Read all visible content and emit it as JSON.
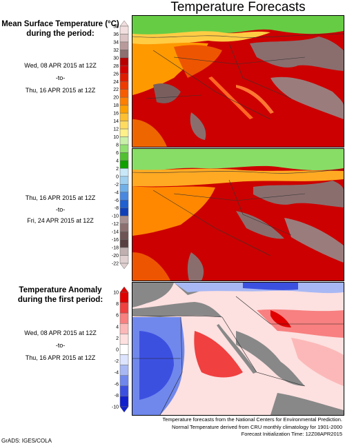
{
  "title": "Temperature Forecasts",
  "panel1": {
    "heading_line1": "Mean Surface Temperature (°C)",
    "heading_line2": "during the period:",
    "start": "Wed, 08 APR 2015 at 12Z",
    "sep": "-to-",
    "end": "Thu, 16 APR 2015 at 12Z"
  },
  "panel2": {
    "start": "Thu, 16 APR 2015 at 12Z",
    "sep": "-to-",
    "end": "Fri, 24 APR 2015 at 12Z"
  },
  "panel3": {
    "heading_line1": "Temperature Anomaly",
    "heading_line2": "during the first period:",
    "start": "Wed, 08 APR 2015 at 12Z",
    "sep": "-to-",
    "end": "Thu, 16 APR 2015 at 12Z"
  },
  "temp_scale": {
    "ticks": [
      "38",
      "36",
      "34",
      "32",
      "30",
      "28",
      "26",
      "24",
      "22",
      "20",
      "18",
      "16",
      "14",
      "12",
      "10",
      "8",
      "6",
      "4",
      "2",
      "0",
      "-2",
      "-4",
      "-6",
      "-8",
      "-10",
      "-12",
      "-14",
      "-16",
      "-18",
      "-20",
      "-22"
    ],
    "colors": [
      "#f2dede",
      "#dcc4c4",
      "#b99a9a",
      "#8e7070",
      "#b80000",
      "#d40000",
      "#e01c00",
      "#ee3a00",
      "#f75d00",
      "#ff8000",
      "#ffa000",
      "#ffc030",
      "#ffdc60",
      "#fff088",
      "#c8f0a8",
      "#90e070",
      "#50c030",
      "#10a000",
      "#c8e8f8",
      "#a0d0f0",
      "#70b0e8",
      "#4888e0",
      "#2060d0",
      "#1040b8",
      "#a89090",
      "#8c7070",
      "#6e5454",
      "#584040",
      "#c0b0b0",
      "#e0d0d0"
    ]
  },
  "anom_scale": {
    "ticks": [
      "10",
      "8",
      "6",
      "4",
      "2",
      "0",
      "-2",
      "-4",
      "-6",
      "-8",
      "-10"
    ],
    "colors": [
      "#e00000",
      "#f04040",
      "#f88080",
      "#fcb8b8",
      "#fee0e0",
      "#ffffff",
      "#dde4ff",
      "#a8b8f4",
      "#7088ec",
      "#3c50e0",
      "#1020cc"
    ]
  },
  "footer": {
    "line1": "Temperature forecasts from the National Centers for Environmental Prediction.",
    "line2": "Normal Temperature derived from CRU monthly climatology for 1901-2000",
    "line3": "Forecast Initialization Time: 12Z08APR2015"
  },
  "credit": "GrADS: IGES/COLA"
}
